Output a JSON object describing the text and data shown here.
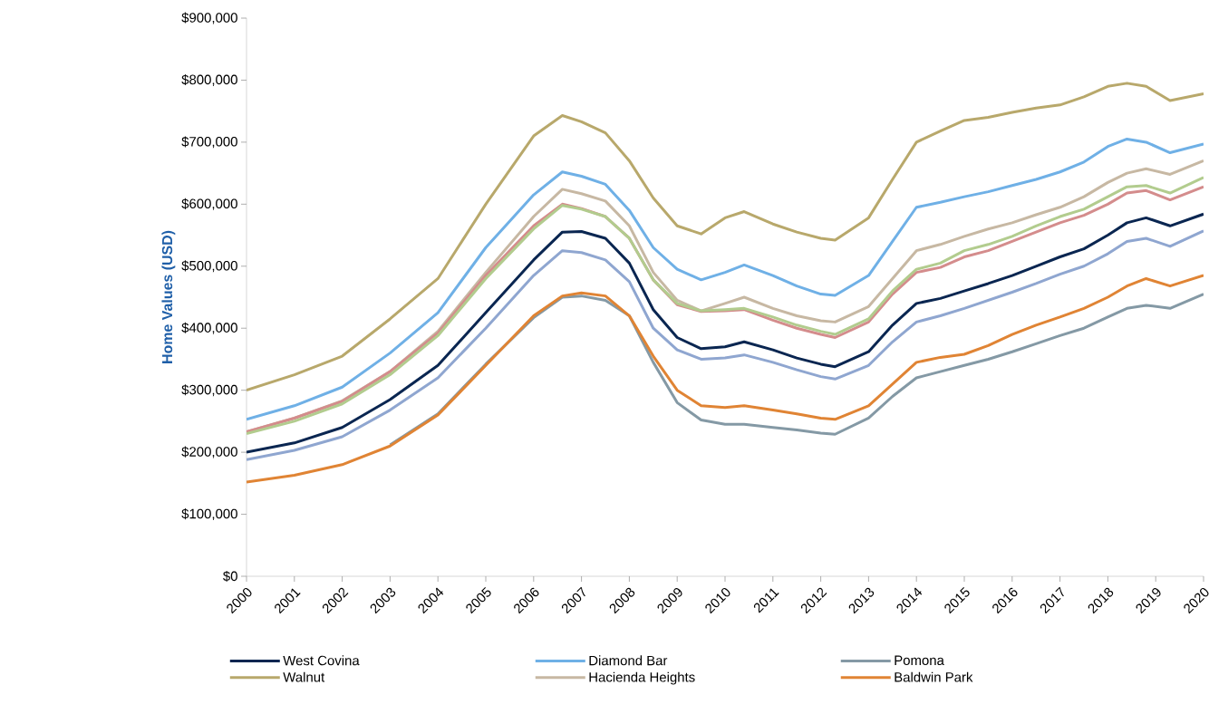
{
  "chart_data": {
    "type": "line",
    "ylabel": "Home Values (USD)",
    "x": [
      2000,
      2001,
      2002,
      2003,
      2004,
      2005,
      2006,
      2006.6,
      2007,
      2007.5,
      2008,
      2008.5,
      2009,
      2009.5,
      2010,
      2010.4,
      2011,
      2011.5,
      2012,
      2012.3,
      2013,
      2013.5,
      2014,
      2014.5,
      2015,
      2015.5,
      2016,
      2016.5,
      2017,
      2017.5,
      2018,
      2018.4,
      2018.8,
      2019.3,
      2020
    ],
    "series": [
      {
        "name": "West Covina",
        "color": "#0a2651",
        "values": [
          200000,
          215000,
          240000,
          285000,
          340000,
          425000,
          510000,
          555000,
          556000,
          545000,
          505000,
          430000,
          385000,
          367000,
          370000,
          378000,
          365000,
          352000,
          342000,
          338000,
          362000,
          405000,
          440000,
          448000,
          460000,
          472000,
          485000,
          500000,
          515000,
          528000,
          550000,
          570000,
          578000,
          565000,
          584000
        ]
      },
      {
        "name": "Diamond Bar",
        "color": "#6fb0e6",
        "values": [
          253000,
          275000,
          305000,
          360000,
          425000,
          530000,
          615000,
          652000,
          645000,
          632000,
          590000,
          530000,
          495000,
          478000,
          490000,
          502000,
          485000,
          468000,
          455000,
          453000,
          485000,
          540000,
          595000,
          603000,
          612000,
          620000,
          630000,
          640000,
          652000,
          668000,
          693000,
          705000,
          700000,
          683000,
          697000
        ]
      },
      {
        "name": "Pomona",
        "color": "#8499a5",
        "values": [
          null,
          null,
          null,
          212000,
          262000,
          342000,
          417000,
          450000,
          452000,
          445000,
          420000,
          345000,
          280000,
          252000,
          245000,
          245000,
          240000,
          236000,
          231000,
          229000,
          255000,
          290000,
          320000,
          330000,
          340000,
          350000,
          362000,
          375000,
          388000,
          400000,
          418000,
          432000,
          437000,
          432000,
          455000
        ]
      },
      {
        "name": "Walnut",
        "color": "#b8a86b",
        "values": [
          300000,
          325000,
          355000,
          415000,
          480000,
          600000,
          710000,
          743000,
          733000,
          715000,
          670000,
          610000,
          565000,
          552000,
          578000,
          588000,
          568000,
          555000,
          545000,
          542000,
          578000,
          640000,
          700000,
          718000,
          735000,
          740000,
          748000,
          755000,
          760000,
          773000,
          790000,
          795000,
          790000,
          767000,
          778000
        ]
      },
      {
        "name": "Hacienda Heights",
        "color": "#c7b8a3",
        "values": [
          233000,
          255000,
          283000,
          330000,
          395000,
          490000,
          580000,
          624000,
          617000,
          605000,
          565000,
          490000,
          445000,
          428000,
          440000,
          450000,
          432000,
          420000,
          412000,
          410000,
          435000,
          480000,
          525000,
          535000,
          548000,
          560000,
          570000,
          583000,
          595000,
          612000,
          635000,
          650000,
          657000,
          648000,
          670000
        ]
      },
      {
        "name": "Baldwin Park",
        "color": "#e08434",
        "values": [
          152000,
          163000,
          180000,
          210000,
          260000,
          340000,
          420000,
          452000,
          457000,
          452000,
          420000,
          355000,
          300000,
          275000,
          272000,
          275000,
          268000,
          262000,
          255000,
          253000,
          275000,
          310000,
          345000,
          353000,
          358000,
          372000,
          390000,
          405000,
          418000,
          432000,
          450000,
          468000,
          480000,
          468000,
          485000
        ]
      },
      {
        "color": "#d48c8c",
        "values": [
          233000,
          255000,
          282000,
          330000,
          392000,
          485000,
          565000,
          600000,
          593000,
          580000,
          545000,
          478000,
          438000,
          427000,
          428000,
          430000,
          413000,
          400000,
          390000,
          385000,
          410000,
          455000,
          490000,
          498000,
          515000,
          525000,
          540000,
          555000,
          570000,
          582000,
          600000,
          618000,
          622000,
          607000,
          628000
        ]
      },
      {
        "color": "#b2cc8e",
        "values": [
          230000,
          250000,
          278000,
          325000,
          388000,
          480000,
          560000,
          598000,
          592000,
          580000,
          545000,
          478000,
          440000,
          428000,
          430000,
          432000,
          418000,
          405000,
          395000,
          390000,
          415000,
          460000,
          495000,
          505000,
          525000,
          535000,
          548000,
          565000,
          580000,
          592000,
          612000,
          628000,
          630000,
          618000,
          643000
        ]
      },
      {
        "color": "#8fa6d0",
        "values": [
          188000,
          203000,
          225000,
          268000,
          320000,
          400000,
          485000,
          525000,
          522000,
          510000,
          475000,
          400000,
          365000,
          350000,
          352000,
          357000,
          345000,
          333000,
          322000,
          318000,
          340000,
          378000,
          410000,
          420000,
          432000,
          445000,
          458000,
          472000,
          487000,
          500000,
          520000,
          540000,
          545000,
          532000,
          557000
        ]
      }
    ],
    "xlim": [
      2000,
      2020
    ],
    "xticks": [
      2000,
      2001,
      2002,
      2003,
      2004,
      2005,
      2006,
      2007,
      2008,
      2009,
      2010,
      2011,
      2012,
      2013,
      2014,
      2015,
      2016,
      2017,
      2018,
      2019,
      2020
    ],
    "ylim": [
      0,
      900000
    ],
    "yticks": [
      {
        "value": 0,
        "label": "$0"
      },
      {
        "value": 100000,
        "label": "$100,000"
      },
      {
        "value": 200000,
        "label": "$200,000"
      },
      {
        "value": 300000,
        "label": "$300,000"
      },
      {
        "value": 400000,
        "label": "$400,000"
      },
      {
        "value": 500000,
        "label": "$500,000"
      },
      {
        "value": 600000,
        "label": "$600,000"
      },
      {
        "value": 700000,
        "label": "$700,000"
      },
      {
        "value": 800000,
        "label": "$800,000"
      },
      {
        "value": 900000,
        "label": "$900,000"
      }
    ],
    "grid": false,
    "legend": "bottom",
    "marker": "none",
    "line_style": "solid"
  }
}
